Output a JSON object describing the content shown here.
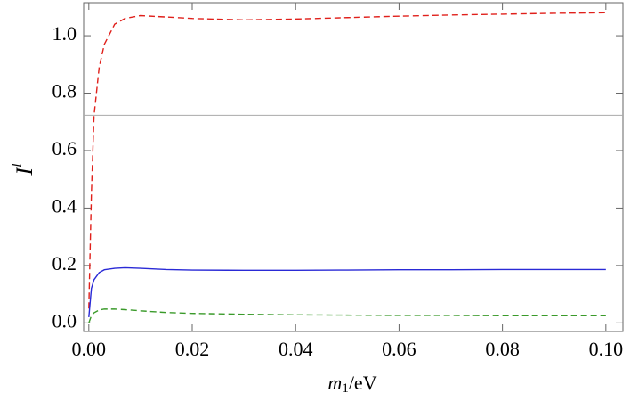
{
  "chart_data": {
    "type": "line",
    "xlabel": {
      "symbol": "m",
      "subscript": "1",
      "unit": "/eV"
    },
    "ylabel": {
      "symbol": "I",
      "superscript": "l"
    },
    "x": [
      0,
      0.0005,
      0.001,
      0.002,
      0.003,
      0.005,
      0.007,
      0.01,
      0.015,
      0.02,
      0.03,
      0.04,
      0.05,
      0.06,
      0.07,
      0.08,
      0.09,
      0.1
    ],
    "series": [
      {
        "color": "#e0201b",
        "dashed": true,
        "values": [
          0.05,
          0.45,
          0.72,
          0.89,
          0.97,
          1.04,
          1.06,
          1.07,
          1.065,
          1.06,
          1.055,
          1.058,
          1.063,
          1.068,
          1.072,
          1.075,
          1.078,
          1.08
        ]
      },
      {
        "color": "#2a2ad6",
        "dashed": false,
        "values": [
          0.02,
          0.12,
          0.15,
          0.175,
          0.185,
          0.19,
          0.192,
          0.19,
          0.186,
          0.184,
          0.183,
          0.183,
          0.184,
          0.185,
          0.185,
          0.186,
          0.186,
          0.186
        ]
      },
      {
        "color": "#3a9a2a",
        "dashed": true,
        "values": [
          0,
          0.025,
          0.035,
          0.045,
          0.048,
          0.048,
          0.046,
          0.042,
          0.036,
          0.033,
          0.03,
          0.028,
          0.027,
          0.026,
          0.026,
          0.025,
          0.025,
          0.025
        ]
      }
    ],
    "hline": 0.723,
    "hline_color": "#aaaaaa",
    "xlim": [
      -0.001,
      0.1033
    ],
    "ylim": [
      -0.03,
      1.115
    ],
    "xticks": [
      {
        "value": 0,
        "label": "0.00"
      },
      {
        "value": 0.02,
        "label": "0.02"
      },
      {
        "value": 0.04,
        "label": "0.04"
      },
      {
        "value": 0.06,
        "label": "0.06"
      },
      {
        "value": 0.08,
        "label": "0.08"
      },
      {
        "value": 0.1,
        "label": "0.10"
      }
    ],
    "yticks": [
      {
        "value": 0,
        "label": "0.0"
      },
      {
        "value": 0.2,
        "label": "0.2"
      },
      {
        "value": 0.4,
        "label": "0.4"
      },
      {
        "value": 0.6,
        "label": "0.6"
      },
      {
        "value": 0.8,
        "label": "0.8"
      },
      {
        "value": 1,
        "label": "1.0"
      }
    ]
  }
}
